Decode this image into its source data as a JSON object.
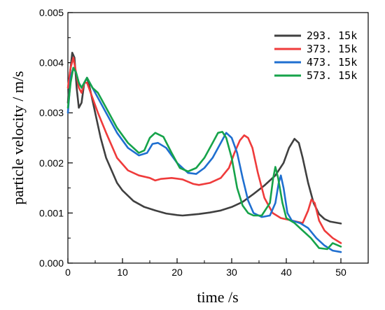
{
  "chart_data": {
    "type": "line",
    "title": "",
    "xlabel": "time /s",
    "ylabel": "particle velocity / m/s",
    "xlim": [
      0,
      55
    ],
    "ylim": [
      0,
      0.005
    ],
    "xticks": [
      0,
      10,
      20,
      30,
      40,
      50
    ],
    "yticks": [
      0.0,
      0.001,
      0.002,
      0.003,
      0.004,
      0.005
    ],
    "xtick_labels": [
      "0",
      "10",
      "20",
      "30",
      "40",
      "50"
    ],
    "ytick_labels": [
      "0.000",
      "0.001",
      "0.002",
      "0.003",
      "0.004",
      "0.005"
    ],
    "grid": false,
    "legend_position": "top-right",
    "series": [
      {
        "name": "293. 15k",
        "color": "#404040",
        "points": [
          [
            0,
            0.0032
          ],
          [
            0.4,
            0.0038
          ],
          [
            0.8,
            0.0042
          ],
          [
            1.2,
            0.0041
          ],
          [
            1.6,
            0.0035
          ],
          [
            2.0,
            0.0031
          ],
          [
            2.5,
            0.0032
          ],
          [
            3.0,
            0.0036
          ],
          [
            3.5,
            0.0037
          ],
          [
            4.0,
            0.0035
          ],
          [
            5.0,
            0.003
          ],
          [
            6.0,
            0.0025
          ],
          [
            7.0,
            0.0021
          ],
          [
            8.0,
            0.00185
          ],
          [
            9.0,
            0.0016
          ],
          [
            10.0,
            0.00145
          ],
          [
            12.0,
            0.00124
          ],
          [
            14.0,
            0.00112
          ],
          [
            16.0,
            0.00105
          ],
          [
            18.0,
            0.00099
          ],
          [
            20.0,
            0.00096
          ],
          [
            21.0,
            0.00095
          ],
          [
            22.0,
            0.00096
          ],
          [
            24.0,
            0.00098
          ],
          [
            26.0,
            0.00101
          ],
          [
            28.0,
            0.00105
          ],
          [
            30.0,
            0.00112
          ],
          [
            32.0,
            0.00122
          ],
          [
            34.0,
            0.00138
          ],
          [
            36.0,
            0.00155
          ],
          [
            38.0,
            0.00175
          ],
          [
            39.5,
            0.002
          ],
          [
            40.5,
            0.0023
          ],
          [
            41.5,
            0.00248
          ],
          [
            42.3,
            0.0024
          ],
          [
            43.0,
            0.0021
          ],
          [
            44.0,
            0.0016
          ],
          [
            45.0,
            0.0012
          ],
          [
            46.0,
            0.00098
          ],
          [
            47.0,
            0.00088
          ],
          [
            48.0,
            0.00083
          ],
          [
            50.0,
            0.00079
          ]
        ]
      },
      {
        "name": "373. 15k",
        "color": "#ef3b3b",
        "points": [
          [
            0,
            0.0035
          ],
          [
            0.5,
            0.0039
          ],
          [
            1.0,
            0.0041
          ],
          [
            1.5,
            0.0038
          ],
          [
            2.0,
            0.0035
          ],
          [
            2.5,
            0.0034
          ],
          [
            3.0,
            0.0036
          ],
          [
            3.5,
            0.0036
          ],
          [
            4.5,
            0.0033
          ],
          [
            5.5,
            0.003
          ],
          [
            7.0,
            0.0026
          ],
          [
            9.0,
            0.0021
          ],
          [
            11.0,
            0.00185
          ],
          [
            13.0,
            0.00175
          ],
          [
            15.0,
            0.0017
          ],
          [
            16.0,
            0.00165
          ],
          [
            17.0,
            0.00168
          ],
          [
            19.0,
            0.0017
          ],
          [
            21.0,
            0.00167
          ],
          [
            23.0,
            0.00158
          ],
          [
            24.0,
            0.00156
          ],
          [
            26.0,
            0.0016
          ],
          [
            28.0,
            0.0017
          ],
          [
            29.5,
            0.0019
          ],
          [
            30.5,
            0.0022
          ],
          [
            31.5,
            0.00245
          ],
          [
            32.3,
            0.00255
          ],
          [
            33.0,
            0.0025
          ],
          [
            33.8,
            0.0023
          ],
          [
            34.8,
            0.0018
          ],
          [
            36.0,
            0.0013
          ],
          [
            37.5,
            0.001
          ],
          [
            39.0,
            0.0009
          ],
          [
            41.0,
            0.00085
          ],
          [
            43.0,
            0.0008
          ],
          [
            44.0,
            0.00105
          ],
          [
            44.6,
            0.00127
          ],
          [
            45.2,
            0.0012
          ],
          [
            46.0,
            0.00085
          ],
          [
            47.0,
            0.00065
          ],
          [
            48.5,
            0.0005
          ],
          [
            50.0,
            0.0004
          ]
        ]
      },
      {
        "name": "473. 15k",
        "color": "#1f6fd0",
        "points": [
          [
            0,
            0.003
          ],
          [
            0.5,
            0.0037
          ],
          [
            1.0,
            0.0039
          ],
          [
            1.5,
            0.0038
          ],
          [
            2.0,
            0.0036
          ],
          [
            2.5,
            0.0035
          ],
          [
            3.0,
            0.0036
          ],
          [
            3.5,
            0.0037
          ],
          [
            4.5,
            0.0035
          ],
          [
            5.5,
            0.0033
          ],
          [
            7.0,
            0.003
          ],
          [
            9.0,
            0.0026
          ],
          [
            11.0,
            0.0023
          ],
          [
            13.0,
            0.00215
          ],
          [
            14.5,
            0.0022
          ],
          [
            15.5,
            0.00238
          ],
          [
            16.5,
            0.0024
          ],
          [
            18.0,
            0.0023
          ],
          [
            20.0,
            0.002
          ],
          [
            22.0,
            0.0018
          ],
          [
            23.5,
            0.00178
          ],
          [
            25.0,
            0.0019
          ],
          [
            26.5,
            0.0021
          ],
          [
            28.0,
            0.0024
          ],
          [
            29.0,
            0.0026
          ],
          [
            30.0,
            0.0025
          ],
          [
            31.0,
            0.0022
          ],
          [
            32.0,
            0.0017
          ],
          [
            33.0,
            0.00125
          ],
          [
            34.0,
            0.001
          ],
          [
            35.5,
            0.00092
          ],
          [
            37.0,
            0.00095
          ],
          [
            38.0,
            0.0012
          ],
          [
            38.6,
            0.0016
          ],
          [
            39.0,
            0.00175
          ],
          [
            39.5,
            0.0015
          ],
          [
            40.2,
            0.001
          ],
          [
            41.0,
            0.00085
          ],
          [
            42.5,
            0.0008
          ],
          [
            44.0,
            0.0007
          ],
          [
            45.5,
            0.0005
          ],
          [
            47.0,
            0.00035
          ],
          [
            48.5,
            0.00025
          ],
          [
            50.0,
            0.00022
          ]
        ]
      },
      {
        "name": "573. 15k",
        "color": "#16a34a",
        "points": [
          [
            0,
            0.0031
          ],
          [
            0.5,
            0.0036
          ],
          [
            1.0,
            0.0039
          ],
          [
            1.5,
            0.0038
          ],
          [
            2.0,
            0.0036
          ],
          [
            2.5,
            0.0035
          ],
          [
            3.0,
            0.0036
          ],
          [
            3.5,
            0.0037
          ],
          [
            4.5,
            0.0035
          ],
          [
            5.5,
            0.0034
          ],
          [
            7.0,
            0.0031
          ],
          [
            9.0,
            0.0027
          ],
          [
            11.0,
            0.0024
          ],
          [
            13.0,
            0.0022
          ],
          [
            14.0,
            0.00225
          ],
          [
            15.0,
            0.0025
          ],
          [
            16.0,
            0.0026
          ],
          [
            17.5,
            0.00252
          ],
          [
            19.0,
            0.0022
          ],
          [
            20.5,
            0.0019
          ],
          [
            22.0,
            0.00183
          ],
          [
            23.5,
            0.0019
          ],
          [
            25.0,
            0.0021
          ],
          [
            26.5,
            0.0024
          ],
          [
            27.5,
            0.0026
          ],
          [
            28.3,
            0.00262
          ],
          [
            29.0,
            0.0025
          ],
          [
            30.0,
            0.0021
          ],
          [
            31.0,
            0.0015
          ],
          [
            32.0,
            0.00115
          ],
          [
            33.0,
            0.001
          ],
          [
            34.0,
            0.00095
          ],
          [
            35.5,
            0.00095
          ],
          [
            37.0,
            0.0012
          ],
          [
            37.6,
            0.0017
          ],
          [
            38.0,
            0.00192
          ],
          [
            38.5,
            0.0017
          ],
          [
            39.3,
            0.0012
          ],
          [
            40.0,
            0.0009
          ],
          [
            41.5,
            0.0008
          ],
          [
            43.0,
            0.00065
          ],
          [
            44.5,
            0.0005
          ],
          [
            46.0,
            0.0003
          ],
          [
            47.5,
            0.00028
          ],
          [
            48.5,
            0.0004
          ],
          [
            50.0,
            0.00033
          ]
        ]
      }
    ]
  }
}
